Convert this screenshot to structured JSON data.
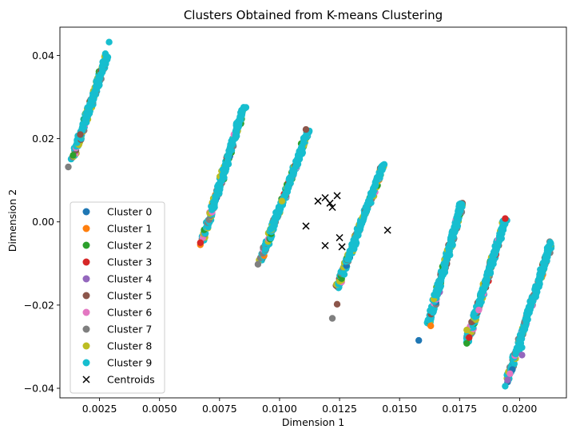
{
  "chart_data": {
    "type": "scatter",
    "title": "Clusters Obtained from K-means Clustering",
    "xlabel": "Dimension 1",
    "ylabel": "Dimension 2",
    "xlim": [
      0.00085,
      0.02195
    ],
    "ylim": [
      -0.0423,
      0.0468
    ],
    "xticks": [
      0.0025,
      0.005,
      0.0075,
      0.01,
      0.0125,
      0.015,
      0.0175,
      0.02
    ],
    "xtick_labels": [
      "0.0025",
      "0.0050",
      "0.0075",
      "0.0100",
      "0.0125",
      "0.0150",
      "0.0175",
      "0.0200"
    ],
    "yticks": [
      -0.04,
      -0.02,
      0.0,
      0.02,
      0.04
    ],
    "ytick_labels": [
      "−0.04",
      "−0.02",
      "0.00",
      "0.02",
      "0.04"
    ],
    "legend_position": "lower-left",
    "bands": [
      {
        "x0": 0.0014,
        "y0": 0.0155,
        "x1": 0.0028,
        "y1": 0.04
      },
      {
        "x0": 0.0068,
        "y0": -0.0045,
        "x1": 0.0085,
        "y1": 0.0275
      },
      {
        "x0": 0.0092,
        "y0": -0.0095,
        "x1": 0.0112,
        "y1": 0.022
      },
      {
        "x0": 0.0124,
        "y0": -0.016,
        "x1": 0.0143,
        "y1": 0.0135
      },
      {
        "x0": 0.0162,
        "y0": -0.0245,
        "x1": 0.0176,
        "y1": 0.0045
      },
      {
        "x0": 0.0178,
        "y0": -0.029,
        "x1": 0.0194,
        "y1": 0.0005
      },
      {
        "x0": 0.0195,
        "y0": -0.038,
        "x1": 0.0213,
        "y1": -0.005
      }
    ],
    "series": [
      {
        "name": "Cluster 0",
        "color": "#1f77b4",
        "points": [
          [
            0.0158,
            -0.0285
          ],
          [
            0.0197,
            -0.0355
          ],
          [
            0.0195,
            -0.0385
          ]
        ]
      },
      {
        "name": "Cluster 1",
        "color": "#ff7f0e",
        "points": [
          [
            0.0067,
            -0.0055
          ],
          [
            0.0163,
            -0.025
          ]
        ]
      },
      {
        "name": "Cluster 2",
        "color": "#2ca02c",
        "points": [
          [
            0.0178,
            -0.0292
          ],
          [
            0.0014,
            0.016
          ]
        ]
      },
      {
        "name": "Cluster 3",
        "color": "#d62728",
        "points": [
          [
            0.0067,
            -0.005
          ],
          [
            0.0194,
            0.0008
          ],
          [
            0.0179,
            -0.0278
          ]
        ]
      },
      {
        "name": "Cluster 4",
        "color": "#9467bd",
        "points": [
          [
            0.0195,
            -0.038
          ],
          [
            0.0201,
            -0.032
          ]
        ]
      },
      {
        "name": "Cluster 5",
        "color": "#8c564b",
        "points": [
          [
            0.0124,
            -0.0198
          ],
          [
            0.0111,
            0.0222
          ],
          [
            0.0017,
            0.021
          ]
        ]
      },
      {
        "name": "Cluster 6",
        "color": "#e377c2",
        "points": [
          [
            0.0196,
            -0.0365
          ],
          [
            0.0183,
            -0.0212
          ]
        ]
      },
      {
        "name": "Cluster 7",
        "color": "#7f7f7f",
        "points": [
          [
            0.0012,
            0.0132
          ],
          [
            0.0122,
            -0.0232
          ],
          [
            0.0091,
            -0.0102
          ]
        ]
      },
      {
        "name": "Cluster 8",
        "color": "#bcbd22",
        "points": [
          [
            0.0178,
            -0.026
          ],
          [
            0.0101,
            0.005
          ]
        ]
      },
      {
        "name": "Cluster 9",
        "color": "#17becf",
        "points": [
          [
            0.0029,
            0.0432
          ],
          [
            0.0086,
            0.0275
          ],
          [
            0.0143,
            0.0132
          ],
          [
            0.0176,
            0.0042
          ],
          [
            0.0213,
            -0.0052
          ],
          [
            0.0194,
            -0.0395
          ],
          [
            0.0201,
            -0.0302
          ]
        ]
      }
    ],
    "centroids": {
      "name": "Centroids",
      "color": "#000000",
      "points": [
        [
          0.0116,
          0.005
        ],
        [
          0.0119,
          0.0058
        ],
        [
          0.0121,
          0.0045
        ],
        [
          0.0124,
          0.0063
        ],
        [
          0.0122,
          0.0035
        ],
        [
          0.0111,
          -0.001
        ],
        [
          0.0145,
          -0.002
        ],
        [
          0.0125,
          -0.0038
        ],
        [
          0.0119,
          -0.0057
        ],
        [
          0.0126,
          -0.006
        ]
      ]
    }
  }
}
